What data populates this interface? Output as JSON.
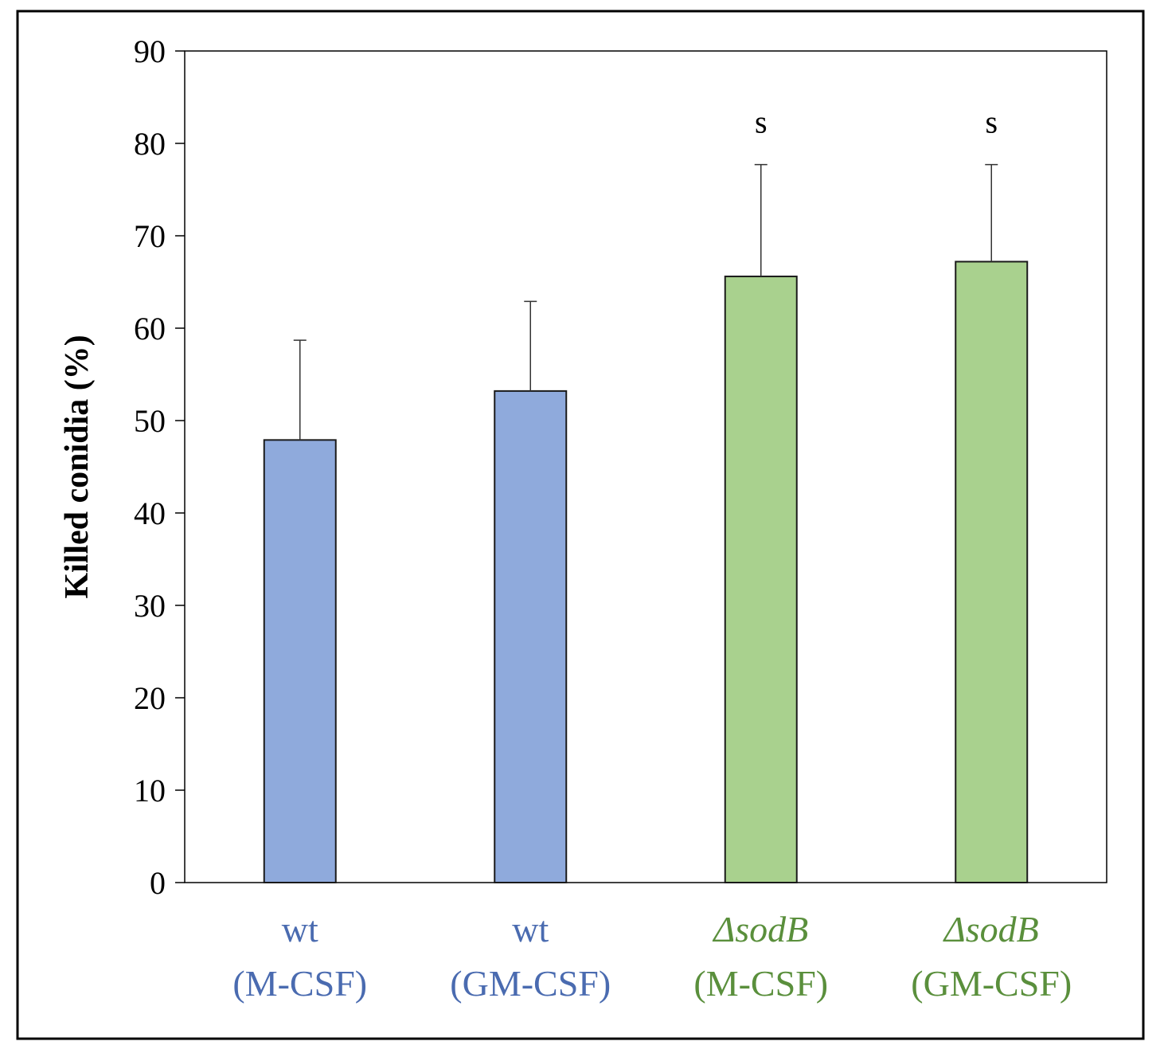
{
  "chart_data": {
    "type": "bar",
    "title": "",
    "xlabel": "",
    "ylabel": "Killed conidia (%)",
    "ylim": [
      0,
      90
    ],
    "yticks": [
      0,
      10,
      20,
      30,
      40,
      50,
      60,
      70,
      80,
      90
    ],
    "grid": false,
    "categories": [
      {
        "line1": "wt",
        "line1_italic": false,
        "line2": "(M-CSF)",
        "color": "#4a6bb0"
      },
      {
        "line1": "wt",
        "line1_italic": false,
        "line2": "(GM-CSF)",
        "color": "#4a6bb0"
      },
      {
        "line1": "ΔsodB",
        "line1_italic": true,
        "line2": "(M-CSF)",
        "color": "#5a8f3c"
      },
      {
        "line1": "ΔsodB",
        "line1_italic": true,
        "line2": "(GM-CSF)",
        "color": "#5a8f3c"
      }
    ],
    "values": [
      47.9,
      53.2,
      65.6,
      67.2
    ],
    "error_upper": [
      10.8,
      9.7,
      12.1,
      10.5
    ],
    "bar_colors": [
      "#8faadc",
      "#8faadc",
      "#a9d18e",
      "#a9d18e"
    ],
    "annotations": [
      "",
      "",
      "s",
      "s"
    ]
  }
}
